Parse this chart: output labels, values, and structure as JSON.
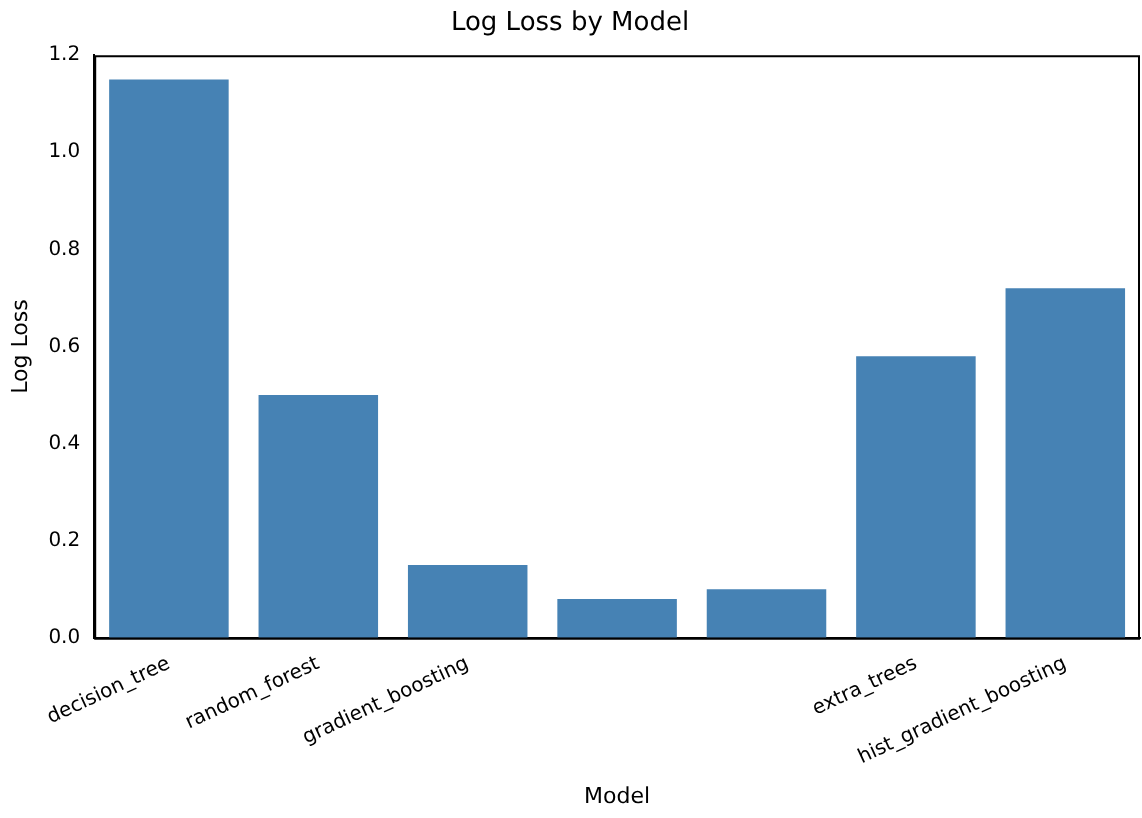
{
  "chart_data": {
    "type": "bar",
    "title": "Log Loss by Model",
    "xlabel": "Model",
    "ylabel": "Log Loss",
    "categories": [
      "decision_tree",
      "random_forest",
      "gradient_boosting",
      null,
      null,
      "extra_trees",
      "hist_gradient_boosting"
    ],
    "values": [
      1.15,
      0.5,
      0.15,
      0.08,
      0.1,
      0.58,
      0.72
    ],
    "color": "#4682b4",
    "ylim": [
      0,
      1.2
    ],
    "yticks": [
      {
        "value": 0,
        "label": "0.0"
      },
      0.2,
      0.4,
      0.6,
      0.8,
      {
        "value": 1,
        "label": "1.0"
      },
      1.2
    ],
    "grid": false,
    "legend": false
  }
}
